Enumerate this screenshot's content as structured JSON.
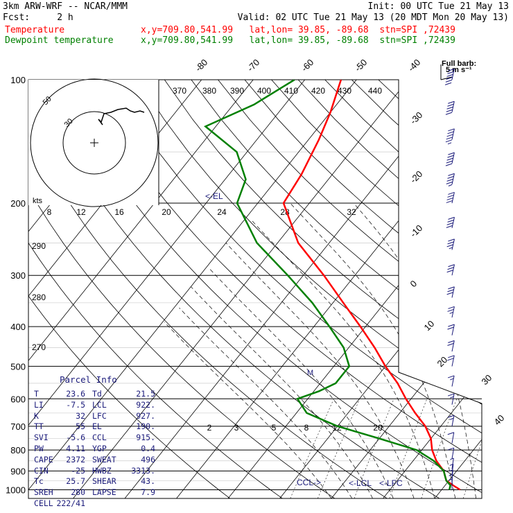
{
  "header": {
    "model": "3km ARW-WRF -- NCAR/MMM",
    "init": "Init: 00 UTC Tue 21 May 13",
    "fcst": "Fcst:     2 h",
    "valid": "Valid: 02 UTC Tue 21 May 13 (20 MDT Mon 20 May 13)",
    "temp_label": "Temperature",
    "temp_info": "x,y=709.80,541.99   lat,lon= 39.85, -89.68  stn=SPI ,72439",
    "dewp_label": "Dewpoint temperature",
    "dewp_info": "x,y=709.80,541.99   lat,lon= 39.85, -89.68  stn=SPI ,72439"
  },
  "colors": {
    "temperature": "#ff0000",
    "dewpoint": "#008000",
    "text": "#000000",
    "info": "#1a1a7a"
  },
  "chart_data": {
    "type": "line",
    "title": "Skew-T log-P sounding",
    "pressure_ticks": [
      100,
      200,
      300,
      400,
      500,
      600,
      700,
      800,
      900,
      1000
    ],
    "isotherm_labels": [
      "-80",
      "-70",
      "-60",
      "-50",
      "-40",
      "-30",
      "-20",
      "-10",
      "0",
      "10",
      "20",
      "30",
      "40"
    ],
    "hodograph": {
      "units": "kts",
      "speed_ticks": [
        "8",
        "12",
        "16",
        "20",
        "24",
        "28",
        "32"
      ],
      "ring_labels": [
        "50",
        "30"
      ],
      "theta_labels": [
        "370",
        "380",
        "390",
        "400",
        "410",
        "420",
        "430",
        "440"
      ]
    },
    "theta_labels": [
      "290",
      "280",
      "270"
    ],
    "mixing_ratio_labels": [
      "2",
      "3",
      "5",
      "8",
      "12",
      "20"
    ],
    "level_marks": {
      "el": "<-EL",
      "ccl": "CCL->",
      "lcl": "<-LCL",
      "lfc": "<-LFC",
      "m": "M"
    },
    "wind_legend": {
      "label": "Full barb:",
      "value": "5 m s⁻¹"
    },
    "series": [
      {
        "name": "Temperature",
        "units": "C",
        "points": [
          [
            1000,
            23.6
          ],
          [
            975,
            21.5
          ],
          [
            950,
            19.5
          ],
          [
            925,
            18.5
          ],
          [
            900,
            17.5
          ],
          [
            850,
            14.5
          ],
          [
            800,
            12
          ],
          [
            750,
            10
          ],
          [
            700,
            7
          ],
          [
            650,
            3
          ],
          [
            600,
            -1
          ],
          [
            550,
            -5
          ],
          [
            500,
            -10
          ],
          [
            450,
            -15
          ],
          [
            400,
            -21
          ],
          [
            350,
            -28
          ],
          [
            300,
            -36
          ],
          [
            250,
            -46
          ],
          [
            200,
            -55
          ],
          [
            170,
            -56
          ],
          [
            140,
            -58
          ],
          [
            120,
            -60
          ],
          [
            100,
            -63
          ]
        ]
      },
      {
        "name": "Dewpoint temperature",
        "units": "C",
        "points": [
          [
            1000,
            21.5
          ],
          [
            975,
            21
          ],
          [
            950,
            19.5
          ],
          [
            925,
            18.5
          ],
          [
            900,
            17.5
          ],
          [
            850,
            14
          ],
          [
            800,
            9
          ],
          [
            750,
            0
          ],
          [
            700,
            -10
          ],
          [
            650,
            -18
          ],
          [
            600,
            -22
          ],
          [
            575,
            -19
          ],
          [
            550,
            -17
          ],
          [
            500,
            -17
          ],
          [
            450,
            -21
          ],
          [
            400,
            -27
          ],
          [
            350,
            -34
          ],
          [
            300,
            -43
          ],
          [
            250,
            -54
          ],
          [
            200,
            -64
          ],
          [
            175,
            -66
          ],
          [
            150,
            -72
          ],
          [
            130,
            -82
          ],
          [
            115,
            -76
          ],
          [
            100,
            -72
          ]
        ]
      }
    ],
    "hodograph_trace": [
      [
        12,
        -14
      ],
      [
        6,
        -6
      ],
      [
        10,
        -10
      ],
      [
        14,
        2
      ],
      [
        24,
        4
      ],
      [
        34,
        8
      ],
      [
        46,
        10
      ],
      [
        52,
        6
      ],
      [
        58,
        4
      ],
      [
        66,
        6
      ],
      [
        72,
        4
      ]
    ],
    "wind_profile_ms": [
      [
        100,
        30,
        245
      ],
      [
        120,
        27,
        245
      ],
      [
        140,
        28,
        250
      ],
      [
        160,
        25,
        250
      ],
      [
        180,
        23,
        250
      ],
      [
        200,
        22,
        250
      ],
      [
        230,
        20,
        255
      ],
      [
        260,
        18,
        255
      ],
      [
        300,
        17,
        255
      ],
      [
        340,
        15,
        250
      ],
      [
        380,
        13,
        250
      ],
      [
        420,
        12,
        250
      ],
      [
        460,
        11,
        245
      ],
      [
        500,
        11,
        245
      ],
      [
        560,
        9,
        240
      ],
      [
        620,
        8,
        240
      ],
      [
        700,
        8,
        235
      ],
      [
        770,
        7,
        230
      ],
      [
        840,
        5,
        230
      ],
      [
        890,
        4,
        220
      ],
      [
        920,
        4,
        210
      ],
      [
        950,
        3,
        200
      ],
      [
        975,
        3,
        190
      ],
      [
        1000,
        3,
        180
      ]
    ]
  },
  "parcel_info": {
    "title": "Parcel Info",
    "rows": [
      [
        "T",
        "23.6",
        "Td",
        "21.5"
      ],
      [
        "LI",
        "-7.5",
        "LCL",
        "922."
      ],
      [
        "K",
        "32",
        "LFC",
        "927."
      ],
      [
        "TT",
        "55",
        "EL",
        "190."
      ],
      [
        "SVI",
        "-5.6",
        "CCL",
        "915."
      ],
      [
        "PW",
        "4.11",
        "YGP",
        "0.4"
      ],
      [
        "CAPE",
        "2372",
        "SWEAT",
        "496"
      ],
      [
        "CIN",
        "-25",
        "HWBZ",
        "3313."
      ],
      [
        "Tc",
        "25.7",
        "SHEAR",
        "43."
      ],
      [
        "SREH",
        "280",
        "LAPSE",
        "7.9"
      ],
      [
        "CELL",
        "222/41",
        "",
        ""
      ]
    ]
  }
}
